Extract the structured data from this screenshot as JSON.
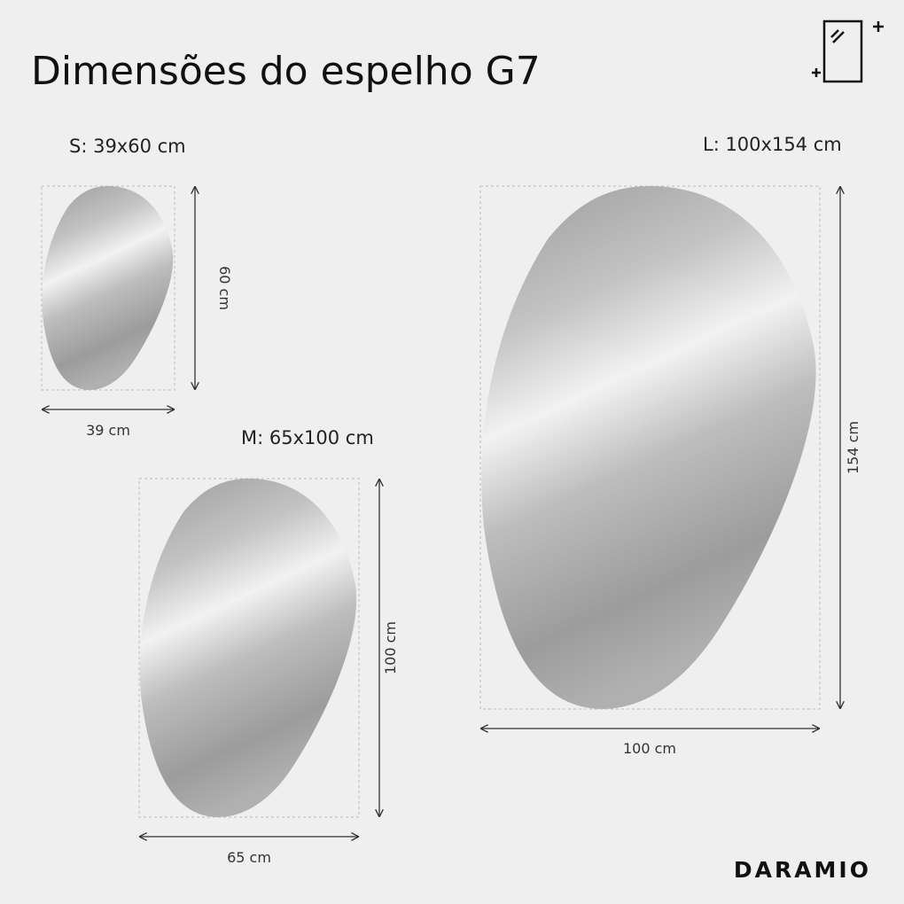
{
  "header": {
    "title": "Dimensões do espelho G7"
  },
  "mirrors": [
    {
      "label": "S: 39x60 cm",
      "width": "39 cm",
      "height": "60 cm"
    },
    {
      "label": "M: 65x100 cm",
      "width": "65 cm",
      "height": "100 cm"
    },
    {
      "label": "L: 100x154 cm",
      "width": "100 cm",
      "height": "154 cm"
    }
  ],
  "brand": "DARAMIO"
}
